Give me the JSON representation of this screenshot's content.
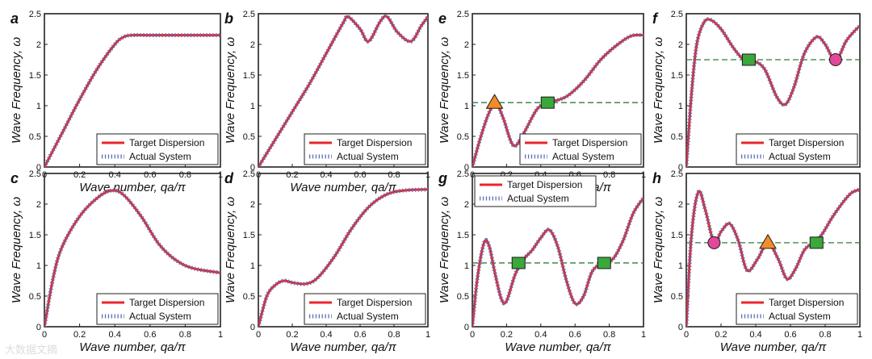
{
  "figure": {
    "watermark": "大数据文摘",
    "colors": {
      "target": "#e8262c",
      "actual": "#5a6fb8",
      "hline": "#2e7d3a",
      "axis": "#222222",
      "square": "#3aa83a",
      "triangle": "#f28c28",
      "circle": "#e0489a"
    },
    "legend": {
      "target_label": "Target Dispersion",
      "actual_label": "Actual System"
    }
  },
  "chart_data": [
    {
      "id": "a",
      "type": "line",
      "xlabel": "Wave number, qa/π",
      "ylabel": "Wave Frequency, ω",
      "xlim": [
        0,
        1
      ],
      "ylim": [
        0,
        2.5
      ],
      "xticks": [
        "0",
        "0.2",
        "0.4",
        "0.6",
        "0.8",
        "1"
      ],
      "yticks": [
        "0",
        "0.5",
        "1",
        "1.5",
        "2",
        "2.5"
      ],
      "series": [
        {
          "name": "Target Dispersion",
          "x": [
            0,
            0.1,
            0.2,
            0.3,
            0.4,
            0.45,
            0.5,
            0.6,
            0.8,
            1
          ],
          "y": [
            0,
            0.55,
            1.1,
            1.6,
            2.0,
            2.12,
            2.15,
            2.15,
            2.15,
            2.15
          ]
        }
      ],
      "markers": []
    },
    {
      "id": "b",
      "type": "line",
      "xlabel": "Wave number, qa/π",
      "ylabel": "Wave Frequency, ω",
      "xlim": [
        0,
        1
      ],
      "ylim": [
        0,
        2.5
      ],
      "xticks": [
        "0",
        "0.2",
        "0.4",
        "0.6",
        "0.8",
        "1"
      ],
      "yticks": [
        "0",
        "0.5",
        "1",
        "1.5",
        "2",
        "2.5"
      ],
      "series": [
        {
          "name": "Target Dispersion",
          "x": [
            0,
            0.1,
            0.2,
            0.3,
            0.4,
            0.5,
            0.53,
            0.6,
            0.65,
            0.72,
            0.76,
            0.82,
            0.9,
            0.96,
            1
          ],
          "y": [
            0,
            0.45,
            0.9,
            1.35,
            1.85,
            2.35,
            2.45,
            2.25,
            2.05,
            2.38,
            2.45,
            2.2,
            2.05,
            2.3,
            2.45
          ]
        }
      ],
      "markers": []
    },
    {
      "id": "c",
      "type": "line",
      "xlabel": "Wave number, qa/π",
      "ylabel": "Wave Frequency, ω",
      "xlim": [
        0,
        1
      ],
      "ylim": [
        0,
        2.5
      ],
      "xticks": [
        "0",
        "0.2",
        "0.4",
        "0.6",
        "0.8",
        "1"
      ],
      "yticks": [
        "0",
        "0.5",
        "1",
        "1.5",
        "2",
        "2.5"
      ],
      "series": [
        {
          "name": "Target Dispersion",
          "x": [
            0,
            0.05,
            0.1,
            0.2,
            0.3,
            0.38,
            0.45,
            0.55,
            0.65,
            0.75,
            0.85,
            1
          ],
          "y": [
            0,
            0.8,
            1.3,
            1.8,
            2.1,
            2.22,
            2.15,
            1.8,
            1.35,
            1.08,
            0.95,
            0.88
          ]
        }
      ],
      "markers": []
    },
    {
      "id": "d",
      "type": "line",
      "xlabel": "Wave number, qa/π",
      "ylabel": "Wave Frequency, ω",
      "xlim": [
        0,
        1
      ],
      "ylim": [
        0,
        2.5
      ],
      "xticks": [
        "0",
        "0.2",
        "0.4",
        "0.6",
        "0.8",
        "1"
      ],
      "yticks": [
        "0",
        "0.5",
        "1",
        "1.5",
        "2",
        "2.5"
      ],
      "series": [
        {
          "name": "Target Dispersion",
          "x": [
            0,
            0.05,
            0.1,
            0.15,
            0.2,
            0.28,
            0.35,
            0.45,
            0.55,
            0.65,
            0.75,
            0.85,
            1
          ],
          "y": [
            0,
            0.5,
            0.68,
            0.75,
            0.72,
            0.7,
            0.8,
            1.15,
            1.6,
            1.95,
            2.15,
            2.22,
            2.24
          ]
        }
      ],
      "markers": []
    },
    {
      "id": "e",
      "type": "line",
      "xlabel": "Wave number, qa/π",
      "ylabel": "Wave Frequency, ω",
      "xlim": [
        0,
        1
      ],
      "ylim": [
        0,
        2.5
      ],
      "xticks": [
        "0",
        "0.2",
        "0.4",
        "0.6",
        "0.8",
        "1"
      ],
      "yticks": [
        "0",
        "0.5",
        "1",
        "1.5",
        "2",
        "2.5"
      ],
      "hline": 1.05,
      "series": [
        {
          "name": "Target Dispersion",
          "x": [
            0,
            0.05,
            0.1,
            0.14,
            0.18,
            0.24,
            0.3,
            0.38,
            0.45,
            0.55,
            0.65,
            0.75,
            0.85,
            0.93,
            1
          ],
          "y": [
            0,
            0.5,
            0.9,
            1.03,
            0.8,
            0.35,
            0.55,
            0.95,
            1.05,
            1.15,
            1.4,
            1.75,
            2.0,
            2.14,
            2.15
          ]
        }
      ],
      "markers": [
        {
          "shape": "triangle",
          "x": 0.13,
          "y": 1.05
        },
        {
          "shape": "square",
          "x": 0.44,
          "y": 1.05
        }
      ]
    },
    {
      "id": "f",
      "type": "line",
      "xlabel": "",
      "ylabel": "Wave Frequency, ω",
      "xlim": [
        0,
        1
      ],
      "ylim": [
        0,
        2.5
      ],
      "xticks": [],
      "yticks": [
        "0",
        "0.5",
        "1",
        "1.5",
        "2",
        "2.5"
      ],
      "hline": 1.75,
      "series": [
        {
          "name": "Target Dispersion",
          "x": [
            0,
            0.03,
            0.06,
            0.1,
            0.14,
            0.2,
            0.27,
            0.33,
            0.38,
            0.45,
            0.52,
            0.57,
            0.62,
            0.68,
            0.75,
            0.8,
            0.86,
            0.92,
            0.97,
            1
          ],
          "y": [
            0,
            1.2,
            2.0,
            2.35,
            2.4,
            2.25,
            1.95,
            1.75,
            1.74,
            1.6,
            1.15,
            1.02,
            1.3,
            1.85,
            2.12,
            2.0,
            1.74,
            2.05,
            2.22,
            2.3
          ]
        }
      ],
      "markers": [
        {
          "shape": "square",
          "x": 0.36,
          "y": 1.75
        },
        {
          "shape": "circle",
          "x": 0.86,
          "y": 1.75
        }
      ]
    },
    {
      "id": "g",
      "type": "line",
      "xlabel": "Wave number, qa/π",
      "ylabel": "Wave Frequency, ω",
      "xlim": [
        0,
        1
      ],
      "ylim": [
        0,
        2.5
      ],
      "xticks": [
        "0",
        "0.2",
        "0.4",
        "0.6",
        "0.8",
        "1"
      ],
      "yticks": [
        "0",
        "0.5",
        "1",
        "1.5",
        "2",
        "2.5"
      ],
      "hline": 1.04,
      "series": [
        {
          "name": "Target Dispersion",
          "x": [
            0,
            0.03,
            0.07,
            0.1,
            0.13,
            0.17,
            0.2,
            0.25,
            0.3,
            0.35,
            0.4,
            0.45,
            0.5,
            0.55,
            0.6,
            0.65,
            0.7,
            0.76,
            0.82,
            0.88,
            0.94,
            1
          ],
          "y": [
            0,
            0.8,
            1.38,
            1.3,
            0.9,
            0.45,
            0.42,
            0.85,
            1.1,
            1.25,
            1.45,
            1.58,
            1.3,
            0.75,
            0.38,
            0.5,
            0.9,
            1.04,
            1.1,
            1.4,
            1.85,
            2.1
          ]
        }
      ],
      "markers": [
        {
          "shape": "square",
          "x": 0.27,
          "y": 1.04
        },
        {
          "shape": "square",
          "x": 0.77,
          "y": 1.04
        }
      ]
    },
    {
      "id": "h",
      "type": "line",
      "xlabel": "Wave number, qa/π",
      "ylabel": "Wave Frequency, ω",
      "xlim": [
        0,
        1
      ],
      "ylim": [
        0,
        2.5
      ],
      "xticks": [
        "0",
        "0.2",
        "0.4",
        "0.6",
        "0.8",
        "1"
      ],
      "yticks": [
        "0",
        "0.5",
        "1",
        "1.5",
        "2",
        "2.5"
      ],
      "hline": 1.37,
      "series": [
        {
          "name": "Target Dispersion",
          "x": [
            0,
            0.03,
            0.07,
            0.11,
            0.16,
            0.2,
            0.25,
            0.3,
            0.35,
            0.41,
            0.47,
            0.53,
            0.58,
            0.63,
            0.68,
            0.73,
            0.78,
            0.84,
            0.9,
            0.95,
            1
          ],
          "y": [
            0,
            1.5,
            2.2,
            1.9,
            1.37,
            1.55,
            1.68,
            1.4,
            0.92,
            1.1,
            1.37,
            1.1,
            0.78,
            0.95,
            1.25,
            1.37,
            1.5,
            1.78,
            2.02,
            2.18,
            2.24
          ]
        }
      ],
      "markers": [
        {
          "shape": "circle",
          "x": 0.16,
          "y": 1.37
        },
        {
          "shape": "triangle",
          "x": 0.47,
          "y": 1.37
        },
        {
          "shape": "square",
          "x": 0.75,
          "y": 1.37
        }
      ]
    }
  ]
}
